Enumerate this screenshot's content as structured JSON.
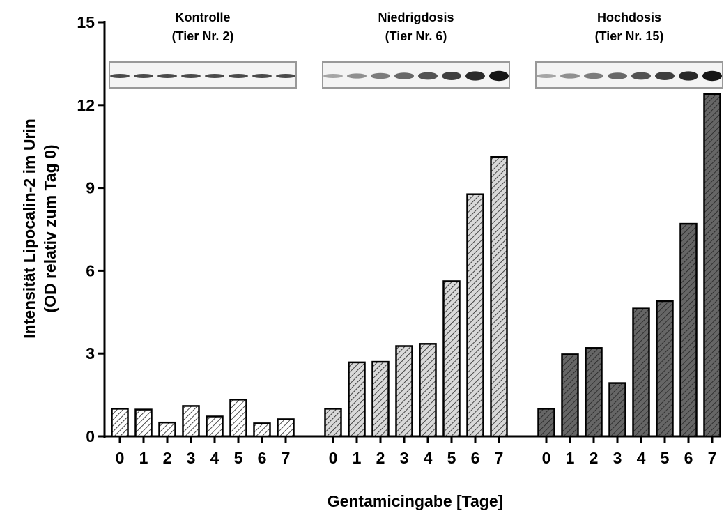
{
  "chart_data": {
    "type": "bar",
    "categories": [
      "0",
      "1",
      "2",
      "3",
      "4",
      "5",
      "6",
      "7"
    ],
    "series": [
      {
        "name": "Kontrolle",
        "label": "(Tier Nr. 2)",
        "color": "#ffffff",
        "values": [
          1.0,
          0.97,
          0.5,
          1.1,
          0.72,
          1.33,
          0.47,
          0.62
        ]
      },
      {
        "name": "Niedrigdosis",
        "label": "(Tier Nr. 6)",
        "color": "#d9d9d9",
        "values": [
          1.0,
          2.68,
          2.7,
          3.27,
          3.35,
          5.62,
          8.77,
          10.12
        ]
      },
      {
        "name": "Hochdosis",
        "label": "(Tier Nr. 15)",
        "color": "#666666",
        "values": [
          1.0,
          2.97,
          3.2,
          1.93,
          4.63,
          4.9,
          7.7,
          12.4
        ]
      }
    ],
    "ylabel": [
      "Intensität Lipocalin-2 im Urin",
      "(OD relativ zum Tag 0)"
    ],
    "xlabel": "Gentamicingabe [Tage]",
    "ylim": [
      0,
      15
    ],
    "yticks": [
      0,
      3,
      6,
      9,
      12,
      15
    ]
  }
}
